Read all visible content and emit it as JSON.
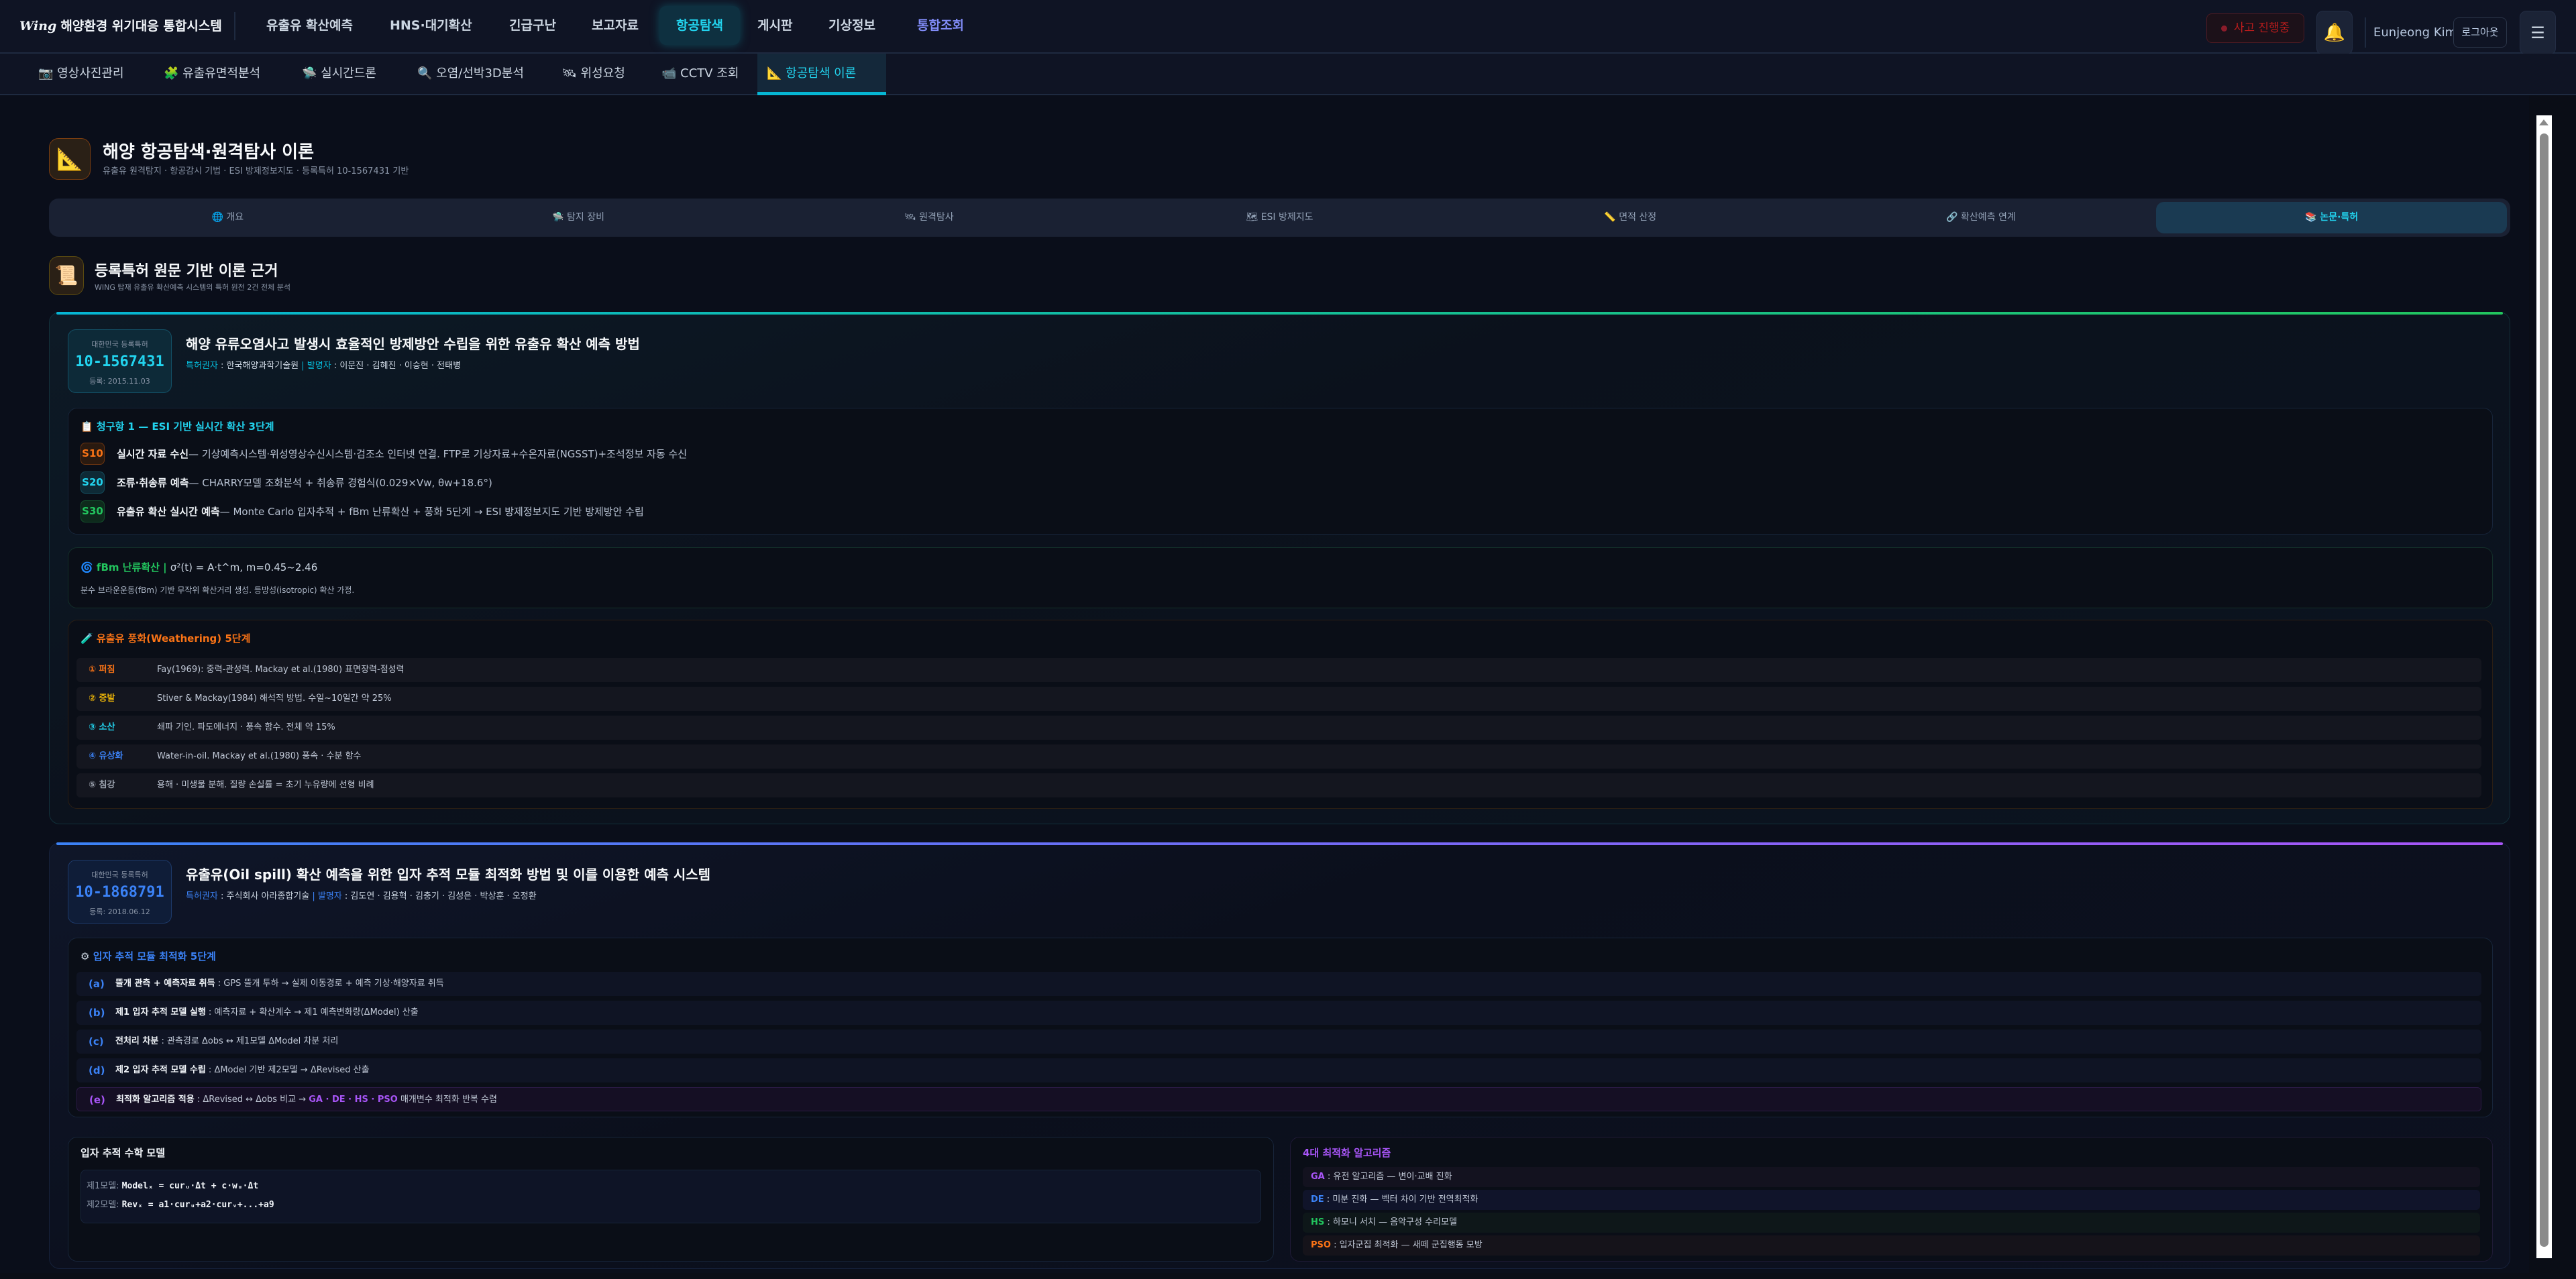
{
  "topbar": {
    "logo_mark": "Wing",
    "app_title": "해양환경 위기대응 통합시스템",
    "nav": [
      "유출유 확산예측",
      "HNS·대기확산",
      "긴급구난",
      "보고자료",
      "항공탐색",
      "게시판",
      "기상정보",
      "통합조회"
    ],
    "active_nav": "항공탐색",
    "incident_label": "사고 진행중",
    "bell_icon": "🔔",
    "user_name": "Eunjeong Kim",
    "logout_label": "로그아웃",
    "menu_icon": "☰"
  },
  "subnav": {
    "items": [
      {
        "icon": "📷",
        "label": "영상사진관리"
      },
      {
        "icon": "🧩",
        "label": "유출유면적분석"
      },
      {
        "icon": "🛸",
        "label": "실시간드론"
      },
      {
        "icon": "🔍",
        "label": "오염/선박3D분석"
      },
      {
        "icon": "🛰",
        "label": "위성요청"
      },
      {
        "icon": "📹",
        "label": "CCTV 조회"
      },
      {
        "icon": "📐",
        "label": "항공탐색 이론"
      }
    ],
    "active": "항공탐색 이론"
  },
  "header": {
    "icon": "📐",
    "title": "해양 항공탐색·원격탐사 이론",
    "subtitle": "유출유 원격탐지 · 항공감시 기법 · ESI 방제정보지도 · 등록특허 10-1567431 기반"
  },
  "tabs": [
    {
      "icon": "🌐",
      "label": "개요"
    },
    {
      "icon": "🛸",
      "label": "탐지 장비"
    },
    {
      "icon": "🛰",
      "label": "원격탐사"
    },
    {
      "icon": "🗺",
      "label": "ESI 방제지도"
    },
    {
      "icon": "📏",
      "label": "면적 산정"
    },
    {
      "icon": "🔗",
      "label": "확산예측 연계"
    },
    {
      "icon": "📚",
      "label": "논문·특허"
    }
  ],
  "active_tab": "논문·특허",
  "section": {
    "icon": "📜",
    "title": "등록특허 원문 기반 이론 근거",
    "subtitle": "WING 탑재 유출유 확산예측 시스템의 특허 원전 2건 전체 분석"
  },
  "patents": [
    {
      "badge_label": "대한민국 등록특허",
      "number": "10-1567431",
      "reg_date": "등록: 2015.11.03",
      "title": "해양 유류오염사고 발생시 효율적인 방제방안 수립을 위한 유출유 확산 예측 방법",
      "holder_key": "특허권자",
      "holder": " : 한국해양과학기술원 ",
      "inventor_key": "발명자",
      "inventors": " : 이문진 · 김혜진 · 이승현 · 전태병",
      "claim": {
        "icon": "📋",
        "title": "청구항 1 — ESI 기반 실시간 확산 3단계",
        "steps": [
          {
            "code": "S10",
            "name": "실시간 자료 수신",
            "desc": " — 기상예측시스템·위성영상수신시스템·검조소 인터넷 연결. FTP로 기상자료+수온자료(NGSST)+조석정보 자동 수신",
            "color": "#f97316"
          },
          {
            "code": "S20",
            "name": "조류·취송류 예측",
            "desc": " — CHARRY모델 조화분석 + 취송류 경험식(0.029×Vw, θw+18.6°)",
            "color": "#22d3ee"
          },
          {
            "code": "S30",
            "name": "유출유 확산 실시간 예측",
            "desc": " — Monte Carlo 입자추적 + fBm 난류확산 + 풍화 5단계 → ESI 방제정보지도 기반 방제방안 수립",
            "color": "#22c55e"
          }
        ]
      },
      "fbm": {
        "icon": "🌀",
        "title": "fBm 난류확산",
        "formula": "σ²(t) = A·t^m, m=0.45~2.46",
        "desc": "분수 브라운운동(fBm) 기반 무작위 확산거리 생성. 등방성(isotropic) 확산 가정."
      },
      "weathering": {
        "icon": "🧪",
        "title": "유출유 풍화(Weathering) 5단계",
        "rows": [
          {
            "label": "① 퍼짐",
            "desc": "Fay(1969): 중력-관성력. Mackay et al.(1980) 표면장력-점성력",
            "color": "#f97316"
          },
          {
            "label": "② 증발",
            "desc": "Stiver & Mackay(1984) 해석적 방법. 수일~10일간 약 25%",
            "color": "#eab308"
          },
          {
            "label": "③ 소산",
            "desc": "쇄파 기인. 파도에너지 · 풍속 함수. 전체 약 15%",
            "color": "#22d3ee"
          },
          {
            "label": "④ 유상화",
            "desc": "Water-in-oil. Mackay et al.(1980) 풍속 · 수분 함수",
            "color": "#3b82f6"
          },
          {
            "label": "⑤ 침강",
            "desc": "용해 · 미생물 분해. 질량 손실률 = 초기 누유량에 선형 비례",
            "color": "#9ca3af"
          }
        ]
      }
    },
    {
      "badge_label": "대한민국 등록특허",
      "number": "10-1868791",
      "reg_date": "등록: 2018.06.12",
      "title": "유출유(Oil spill) 확산 예측을 위한 입자 추적 모듈 최적화 방법 및 이를 이용한 예측 시스템",
      "holder_key": "특허권자",
      "holder": " : 주식회사 아라종합기술 ",
      "inventor_key": "발명자",
      "inventors": " : 김도연 · 김용혁 · 김충기 · 김성은 · 박상훈 · 오정환",
      "steps": {
        "icon": "⚙",
        "title": "입자 추적 모듈 최적화 5단계",
        "rows": [
          {
            "label": "(a)",
            "name": "뜰개 관측 + 예측자료 취득",
            "desc": " : GPS 뜰개 투하 → 실제 이동경로 + 예측 기상·해양자료 취득"
          },
          {
            "label": "(b)",
            "name": "제1 입자 추적 모델 실행",
            "desc": " : 예측자료 + 확산계수 → 제1 예측변화량(ΔModel) 산출"
          },
          {
            "label": "(c)",
            "name": "전처리 차분",
            "desc": " : 관측경로 Δobs ↔ 제1모델 ΔModel 차분 처리"
          },
          {
            "label": "(d)",
            "name": "제2 입자 추적 모델 수립",
            "desc": " : ΔModel 기반 제2모델 → ΔRevised 산출"
          },
          {
            "label": "(e)",
            "name": "최적화 알고리즘 적용",
            "desc": " : ΔRevised ↔ Δobs 비교 → ",
            "highlight": "GA · DE · HS · PSO",
            "tail": " 매개변수 최적화 반복 수렴"
          }
        ]
      },
      "math": {
        "title": "입자 추적 수학 모델",
        "lines": [
          {
            "label": "제1모델: ",
            "formula": "Modelₓ = curᵤ·Δt + c·wᵤ·Δt"
          },
          {
            "label": "제2모델: ",
            "formula": "Revₓ = a1·curᵤ+a2·curᵥ+...+a9"
          }
        ]
      },
      "algorithms": {
        "title": "4대 최적화 알고리즘",
        "rows": [
          {
            "key": "GA",
            "desc": " : 유전 알고리즘 — 변이·교배 진화",
            "color": "#a855f7",
            "bg": "#13121f"
          },
          {
            "key": "DE",
            "desc": " : 미분 진화 — 벡터 차이 기반 전역최적화",
            "color": "#3b82f6",
            "bg": "#10142a"
          },
          {
            "key": "HS",
            "desc": " : 하모니 서치 — 음악구성 수리모델",
            "color": "#22c55e",
            "bg": "#0e1719"
          },
          {
            "key": "PSO",
            "desc": " : 입자군집 최적화 — 새떼 군집행동 모방",
            "color": "#f97316",
            "bg": "#15131a"
          }
        ]
      }
    }
  ]
}
